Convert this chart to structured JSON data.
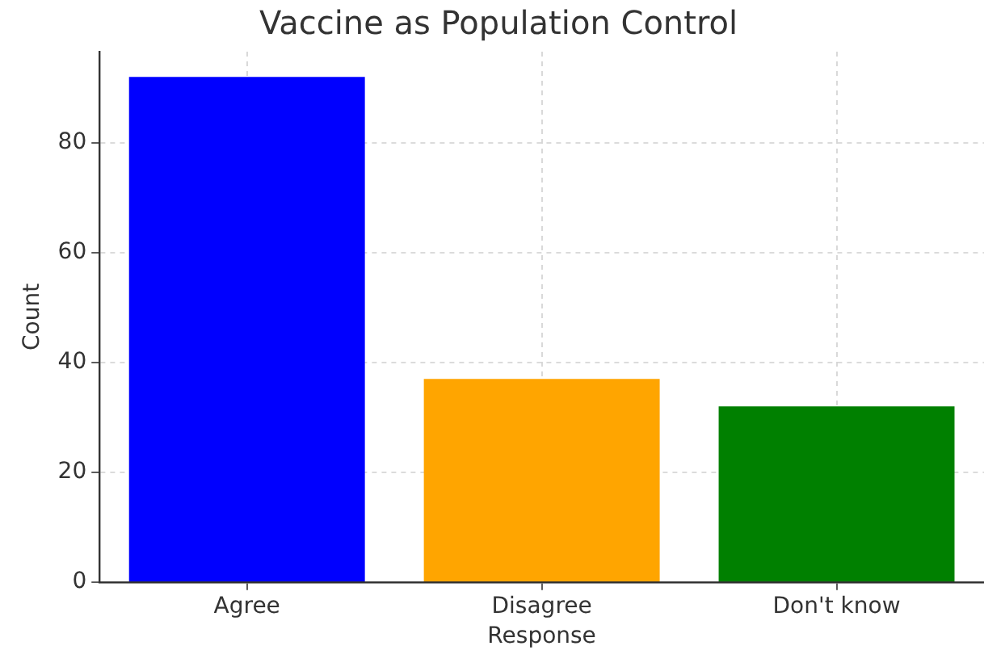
{
  "chart_data": {
    "type": "bar",
    "title": "Vaccine as Population Control",
    "xlabel": "Response",
    "ylabel": "Count",
    "categories": [
      "Agree",
      "Disagree",
      "Don't know"
    ],
    "values": [
      92,
      37,
      32
    ],
    "colors": [
      "#0000ff",
      "#ffa500",
      "#008000"
    ],
    "ylim": [
      0,
      96.6
    ],
    "yticks": [
      0,
      20,
      40,
      60,
      80
    ],
    "grid": true
  }
}
